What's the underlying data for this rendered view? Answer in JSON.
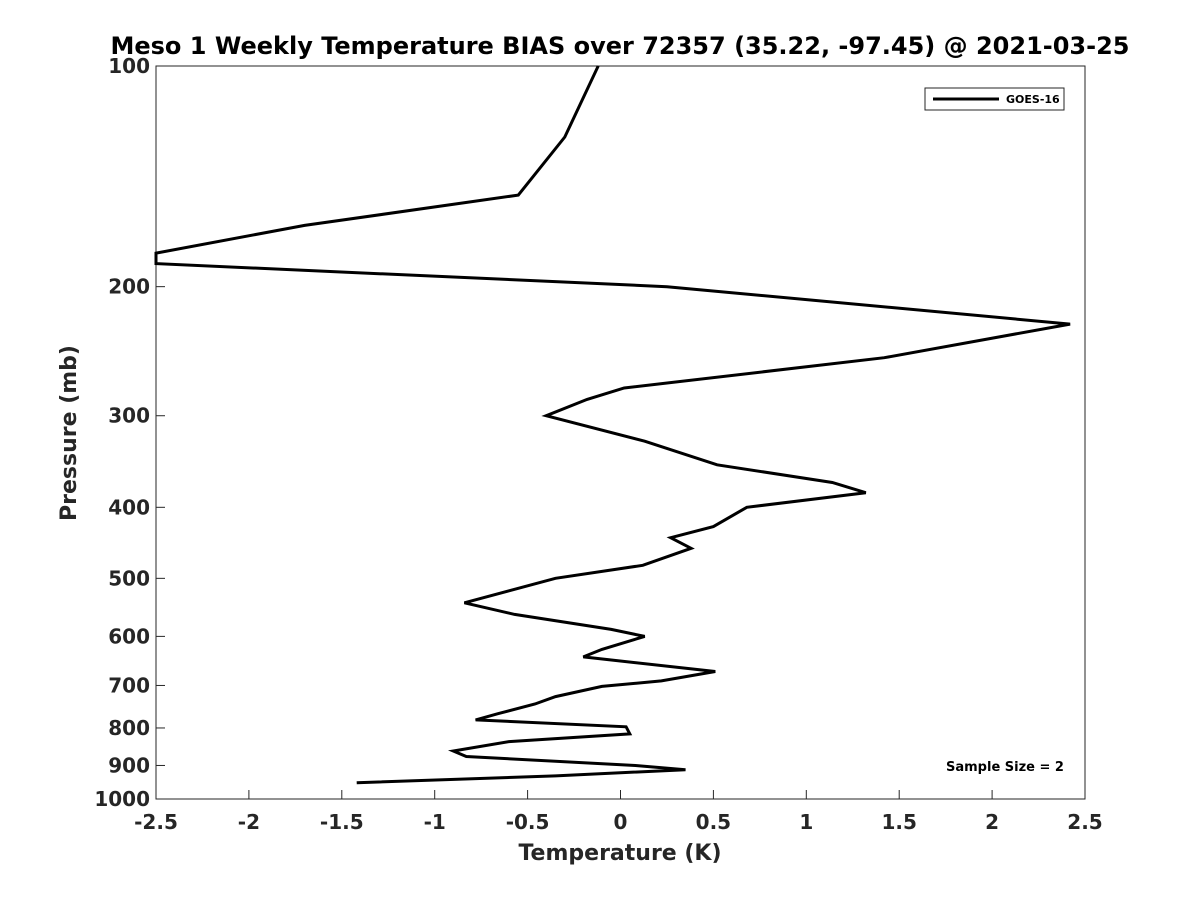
{
  "chart_data": {
    "type": "line",
    "title": "Meso 1 Weekly Temperature BIAS over 72357 (35.22, -97.45) @ 2021-03-25",
    "xlabel": "Temperature (K)",
    "ylabel": "Pressure (mb)",
    "xlim": [
      -2.5,
      2.5
    ],
    "ylim": [
      100,
      1000
    ],
    "y_scale": "log",
    "y_reversed": true,
    "x_ticks": [
      -2.5,
      -2,
      -1.5,
      -1,
      -0.5,
      0,
      0.5,
      1,
      1.5,
      2,
      2.5
    ],
    "x_tick_labels": [
      "-2.5",
      "-2",
      "-1.5",
      "-1",
      "-0.5",
      "0",
      "0.5",
      "1",
      "1.5",
      "2",
      "2.5"
    ],
    "y_ticks": [
      100,
      200,
      300,
      400,
      500,
      600,
      700,
      800,
      900,
      1000
    ],
    "y_tick_labels": [
      "100",
      "200",
      "300",
      "400",
      "500",
      "600",
      "700",
      "800",
      "900",
      "1000"
    ],
    "grid": false,
    "legend": {
      "placement": "top-right",
      "entries": [
        "GOES-16"
      ]
    },
    "annotation": "Sample Size = 2",
    "series": [
      {
        "name": "GOES-16",
        "color": "#000000",
        "points": [
          [
            -0.12,
            100
          ],
          [
            -0.3,
            125
          ],
          [
            -0.55,
            150
          ],
          [
            -1.7,
            165
          ],
          [
            -2.5,
            180
          ],
          [
            -2.5,
            186
          ],
          [
            0.25,
            200
          ],
          [
            2.42,
            225
          ],
          [
            1.42,
            250
          ],
          [
            0.02,
            275
          ],
          [
            -0.18,
            285
          ],
          [
            -0.4,
            300
          ],
          [
            0.13,
            325
          ],
          [
            0.52,
            350
          ],
          [
            1.14,
            370
          ],
          [
            1.32,
            382
          ],
          [
            0.68,
            400
          ],
          [
            0.5,
            425
          ],
          [
            0.27,
            440
          ],
          [
            0.38,
            455
          ],
          [
            0.12,
            480
          ],
          [
            -0.35,
            500
          ],
          [
            -0.6,
            520
          ],
          [
            -0.84,
            540
          ],
          [
            -0.57,
            560
          ],
          [
            -0.05,
            587
          ],
          [
            0.13,
            600
          ],
          [
            -0.1,
            625
          ],
          [
            -0.2,
            640
          ],
          [
            0.51,
            670
          ],
          [
            0.22,
            690
          ],
          [
            -0.1,
            702
          ],
          [
            -0.35,
            725
          ],
          [
            -0.46,
            742
          ],
          [
            -0.66,
            765
          ],
          [
            -0.78,
            780
          ],
          [
            0.03,
            797
          ],
          [
            0.05,
            815
          ],
          [
            -0.6,
            835
          ],
          [
            -0.9,
            860
          ],
          [
            -0.83,
            875
          ],
          [
            0.08,
            900
          ],
          [
            0.35,
            912
          ],
          [
            -0.35,
            930
          ],
          [
            -1.42,
            950
          ]
        ]
      }
    ]
  }
}
